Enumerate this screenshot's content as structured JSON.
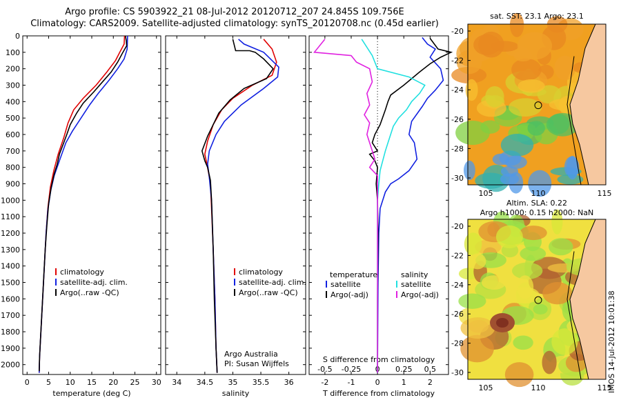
{
  "header": {
    "line1": "Argo profile: CS 5903922_21 08-Jul-2012 20120712_207 24.845S 109.756E",
    "line2": "Climatology: CARS2009. Satellite-adjusted climatology: synTS_20120708.nc (0.45d earlier)"
  },
  "side_label": "IMOS 14-Jul-2012 10:01:38",
  "colors": {
    "climatology": "#e00000",
    "satellite": "#1020e0",
    "argo": "#000000",
    "cyan": "#20e0e0",
    "magenta": "#e020e0"
  },
  "chart_data": [
    {
      "type": "line",
      "id": "temperature",
      "xlabel": "temperature (deg C)",
      "xlim": [
        -1,
        31
      ],
      "xticks": [
        0,
        5,
        10,
        15,
        20,
        25,
        30
      ],
      "ylim": [
        2060,
        0
      ],
      "yticks": [
        0,
        100,
        200,
        300,
        400,
        500,
        600,
        700,
        800,
        900,
        1000,
        1100,
        1200,
        1300,
        1400,
        1500,
        1600,
        1700,
        1800,
        1900,
        2000
      ],
      "legend": [
        "climatology",
        "satellite-adj. clim.",
        "Argo(..raw -QC)"
      ],
      "series": [
        {
          "name": "climatology",
          "color": "#e00000",
          "points": [
            [
              22.6,
              0
            ],
            [
              22.5,
              50
            ],
            [
              21.5,
              100
            ],
            [
              20.5,
              150
            ],
            [
              18.5,
              220
            ],
            [
              16,
              300
            ],
            [
              13,
              380
            ],
            [
              10.8,
              450
            ],
            [
              9.5,
              530
            ],
            [
              8.5,
              620
            ],
            [
              7.2,
              720
            ],
            [
              6.2,
              820
            ],
            [
              5.4,
              920
            ],
            [
              4.8,
              1050
            ],
            [
              4.4,
              1200
            ],
            [
              4,
              1400
            ],
            [
              3.6,
              1600
            ],
            [
              3.2,
              1800
            ],
            [
              2.9,
              1950
            ],
            [
              2.8,
              2050
            ]
          ]
        },
        {
          "name": "satellite-adj. clim.",
          "color": "#1020e0",
          "points": [
            [
              23.3,
              0
            ],
            [
              23.2,
              80
            ],
            [
              22.5,
              140
            ],
            [
              21,
              200
            ],
            [
              19,
              270
            ],
            [
              16.5,
              350
            ],
            [
              14.5,
              420
            ],
            [
              12.5,
              500
            ],
            [
              10.5,
              580
            ],
            [
              9,
              650
            ],
            [
              7.5,
              760
            ],
            [
              6.3,
              850
            ],
            [
              5.5,
              940
            ],
            [
              4.8,
              1060
            ],
            [
              4.4,
              1200
            ],
            [
              4,
              1400
            ],
            [
              3.6,
              1600
            ],
            [
              3.2,
              1800
            ],
            [
              2.9,
              1950
            ],
            [
              2.8,
              2050
            ]
          ]
        },
        {
          "name": "Argo(..raw -QC)",
          "color": "#000000",
          "points": [
            [
              22.8,
              0
            ],
            [
              23,
              30
            ],
            [
              23.1,
              60
            ],
            [
              22,
              110
            ],
            [
              21,
              160
            ],
            [
              19.5,
              220
            ],
            [
              17.5,
              280
            ],
            [
              15.5,
              340
            ],
            [
              13,
              410
            ],
            [
              11.5,
              470
            ],
            [
              10,
              540
            ],
            [
              9.2,
              600
            ],
            [
              8.5,
              650
            ],
            [
              7.5,
              720
            ],
            [
              7,
              780
            ],
            [
              6.3,
              840
            ],
            [
              5.6,
              920
            ],
            [
              5,
              1020
            ],
            [
              4.6,
              1150
            ],
            [
              4.2,
              1300
            ],
            [
              3.8,
              1500
            ],
            [
              3.4,
              1700
            ],
            [
              3.1,
              1850
            ],
            [
              2.9,
              1950
            ],
            [
              2.8,
              2040
            ]
          ]
        }
      ]
    },
    {
      "type": "line",
      "id": "salinity",
      "xlabel": "salinity",
      "xlim": [
        33.8,
        36.3
      ],
      "xticks": [
        34,
        34.5,
        35,
        35.5,
        36
      ],
      "ylim": [
        2060,
        0
      ],
      "legend": [
        "climatology",
        "satellite-adj. clim.",
        "Argo(..raw -QC)"
      ],
      "annotation": [
        "Argo Australia",
        "PI: Susan Wijffels"
      ],
      "series": [
        {
          "name": "climatology",
          "color": "#e00000",
          "points": [
            [
              35.55,
              20
            ],
            [
              35.7,
              80
            ],
            [
              35.78,
              160
            ],
            [
              35.7,
              240
            ],
            [
              35.35,
              300
            ],
            [
              35,
              380
            ],
            [
              34.8,
              450
            ],
            [
              34.65,
              540
            ],
            [
              34.55,
              640
            ],
            [
              34.5,
              720
            ],
            [
              34.55,
              800
            ],
            [
              34.6,
              900
            ],
            [
              34.62,
              1050
            ],
            [
              34.65,
              1300
            ],
            [
              34.68,
              1600
            ],
            [
              34.7,
              1900
            ],
            [
              34.72,
              2050
            ]
          ]
        },
        {
          "name": "satellite-adj. clim.",
          "color": "#1020e0",
          "points": [
            [
              35.1,
              20
            ],
            [
              35.2,
              50
            ],
            [
              35.55,
              100
            ],
            [
              35.82,
              190
            ],
            [
              35.8,
              250
            ],
            [
              35.55,
              320
            ],
            [
              35.15,
              420
            ],
            [
              34.85,
              520
            ],
            [
              34.7,
              600
            ],
            [
              34.58,
              700
            ],
            [
              34.55,
              780
            ],
            [
              34.58,
              860
            ],
            [
              34.62,
              1000
            ],
            [
              34.65,
              1300
            ],
            [
              34.68,
              1600
            ],
            [
              34.7,
              1900
            ],
            [
              34.72,
              2050
            ]
          ]
        },
        {
          "name": "Argo(..raw -QC)",
          "color": "#000000",
          "points": [
            [
              35,
              20
            ],
            [
              35.05,
              90
            ],
            [
              35.3,
              90
            ],
            [
              35.4,
              100
            ],
            [
              35.55,
              140
            ],
            [
              35.72,
              200
            ],
            [
              35.6,
              260
            ],
            [
              35.2,
              320
            ],
            [
              34.95,
              390
            ],
            [
              34.75,
              470
            ],
            [
              34.65,
              540
            ],
            [
              34.55,
              610
            ],
            [
              34.45,
              700
            ],
            [
              34.5,
              760
            ],
            [
              34.55,
              800
            ],
            [
              34.6,
              880
            ],
            [
              34.62,
              1000
            ],
            [
              34.65,
              1300
            ],
            [
              34.67,
              1600
            ],
            [
              34.7,
              1900
            ],
            [
              34.72,
              2050
            ]
          ]
        }
      ]
    },
    {
      "type": "line",
      "id": "difference",
      "xlabel": "T difference from climatology",
      "xlabel_top": "S difference from climatology",
      "xlim": [
        -2.6,
        2.7
      ],
      "xticks": [
        -2,
        -1,
        0,
        1,
        2
      ],
      "top_ticks": [
        "-0.5",
        "-0.25",
        "0",
        "0.25",
        "0.5"
      ],
      "ylim": [
        2060,
        0
      ],
      "legend": {
        "temperature": "temperature",
        "salinity": "salinity",
        "entries": [
          "satellite",
          "Argo(-adj)",
          "satellite",
          "Argo(-adj)"
        ]
      },
      "series": [
        {
          "name": "satellite",
          "color": "#1020e0",
          "points": [
            [
              1.7,
              10
            ],
            [
              1.9,
              50
            ],
            [
              2.2,
              80
            ],
            [
              2,
              130
            ],
            [
              2.4,
              200
            ],
            [
              2.5,
              270
            ],
            [
              2.2,
              330
            ],
            [
              1.9,
              380
            ],
            [
              1.7,
              430
            ],
            [
              1.3,
              520
            ],
            [
              1.2,
              600
            ],
            [
              1.4,
              650
            ],
            [
              1.5,
              750
            ],
            [
              1.2,
              820
            ],
            [
              0.8,
              870
            ],
            [
              0.5,
              900
            ],
            [
              0.3,
              950
            ],
            [
              0.1,
              1050
            ],
            [
              0.05,
              1200
            ],
            [
              0.02,
              1500
            ],
            [
              0,
              2050
            ]
          ]
        },
        {
          "name": "Argo(-adj)",
          "color": "#000000",
          "points": [
            [
              2,
              15
            ],
            [
              2.3,
              80
            ],
            [
              2.8,
              100
            ],
            [
              2.4,
              130
            ],
            [
              2,
              170
            ],
            [
              1.6,
              220
            ],
            [
              1,
              300
            ],
            [
              0.5,
              360
            ],
            [
              0.4,
              400
            ],
            [
              0.3,
              450
            ],
            [
              0.1,
              540
            ],
            [
              -0.1,
              600
            ],
            [
              -0.2,
              650
            ],
            [
              0,
              700
            ],
            [
              -0.3,
              720
            ],
            [
              -0.1,
              760
            ],
            [
              0,
              800
            ],
            [
              -0.05,
              900
            ],
            [
              0,
              1000
            ],
            [
              0.02,
              1200
            ],
            [
              0,
              1600
            ],
            [
              0,
              2050
            ]
          ]
        },
        {
          "name": "satellite",
          "color": "#20e0e0",
          "points": [
            [
              -0.6,
              20
            ],
            [
              -0.2,
              120
            ],
            [
              0,
              200
            ],
            [
              1.2,
              250
            ],
            [
              1.8,
              300
            ],
            [
              1.6,
              350
            ],
            [
              1.3,
              400
            ],
            [
              1.1,
              450
            ],
            [
              0.8,
              500
            ],
            [
              0.6,
              550
            ],
            [
              0.4,
              650
            ],
            [
              0.3,
              700
            ],
            [
              0.2,
              760
            ],
            [
              0.1,
              820
            ],
            [
              0.05,
              900
            ],
            [
              0,
              1000
            ],
            [
              0,
              1500
            ],
            [
              0,
              2050
            ]
          ]
        },
        {
          "name": "Argo(-adj)",
          "color": "#e020e0",
          "points": [
            [
              -2,
              20
            ],
            [
              -2.4,
              100
            ],
            [
              -1,
              120
            ],
            [
              -0.8,
              160
            ],
            [
              -0.3,
              200
            ],
            [
              -0.2,
              280
            ],
            [
              -0.4,
              350
            ],
            [
              -0.3,
              420
            ],
            [
              -0.5,
              480
            ],
            [
              -0.3,
              530
            ],
            [
              -0.4,
              600
            ],
            [
              -0.2,
              700
            ],
            [
              -0.1,
              750
            ],
            [
              -0.3,
              800
            ],
            [
              0,
              850
            ],
            [
              0,
              1000
            ],
            [
              0,
              1500
            ],
            [
              0,
              2050
            ]
          ]
        }
      ]
    }
  ],
  "maps": [
    {
      "id": "sst",
      "title1": "sat. SST: 23.1  Argo: 23.1",
      "title2": "",
      "xticks": [
        "105",
        "110",
        "115"
      ],
      "yticks": [
        "-20",
        "-22",
        "-24",
        "-26",
        "-28",
        "-30"
      ]
    },
    {
      "id": "sla",
      "title1": "Altim. SLA: 0.22",
      "title2": "Argo h1000: 0.15  h2000: NaN",
      "xticks": [
        "105",
        "110",
        "115"
      ],
      "yticks": [
        "-20",
        "-22",
        "-24",
        "-26",
        "-28",
        "-30"
      ]
    }
  ],
  "legend_labels": {
    "climatology": "climatology",
    "satellite": "satellite-adj. clim.",
    "argo": "Argo(..raw -QC)"
  }
}
